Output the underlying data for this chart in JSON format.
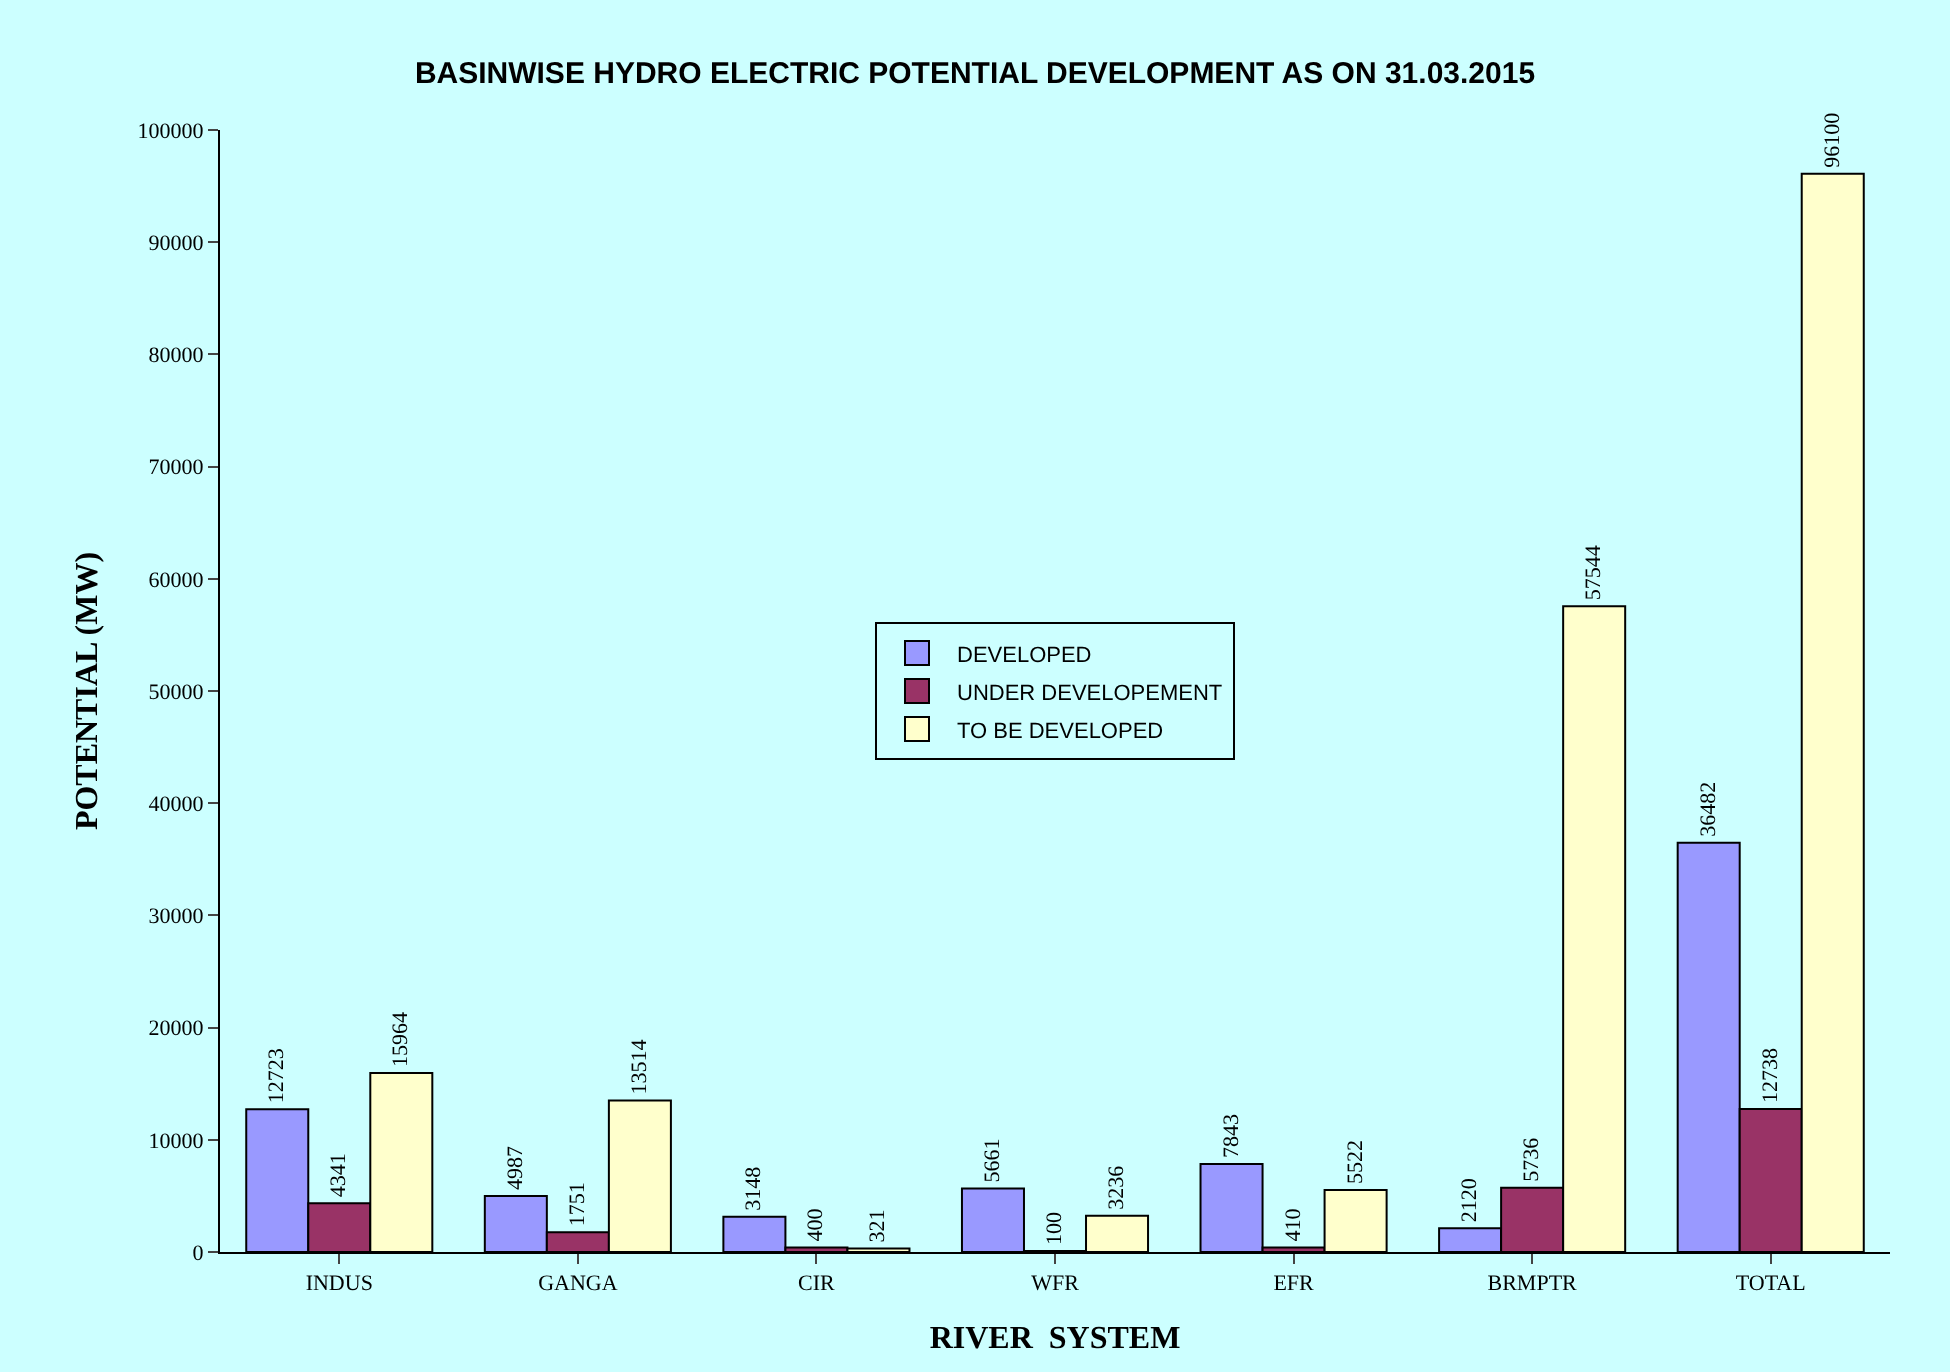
{
  "chart_data": {
    "type": "bar",
    "title": "BASINWISE HYDRO ELECTRIC POTENTIAL DEVELOPMENT AS ON 31.03.2015",
    "xlabel": "RIVER  SYSTEM",
    "ylabel": "POTENTIAL (MW)",
    "categories": [
      "INDUS",
      "GANGA",
      "CIR",
      "WFR",
      "EFR",
      "BRMPTR",
      "TOTAL"
    ],
    "series": [
      {
        "name": "DEVELOPED",
        "color": "#9999ff",
        "values": [
          12723,
          4987,
          3148,
          5661,
          7843,
          2120,
          36482
        ]
      },
      {
        "name": "UNDER DEVELOPEMENT",
        "color": "#993366",
        "values": [
          4341,
          1751,
          400,
          100,
          410,
          5736,
          12738
        ]
      },
      {
        "name": "TO BE DEVELOPED",
        "color": "#ffffcc",
        "values": [
          15964,
          13514,
          321,
          3236,
          5522,
          57544,
          96100
        ]
      }
    ],
    "ylim": [
      0,
      100000
    ],
    "yticks": [
      0,
      10000,
      20000,
      30000,
      40000,
      50000,
      60000,
      70000,
      80000,
      90000,
      100000
    ],
    "grid": false,
    "legend": "center",
    "data_labels": true
  }
}
